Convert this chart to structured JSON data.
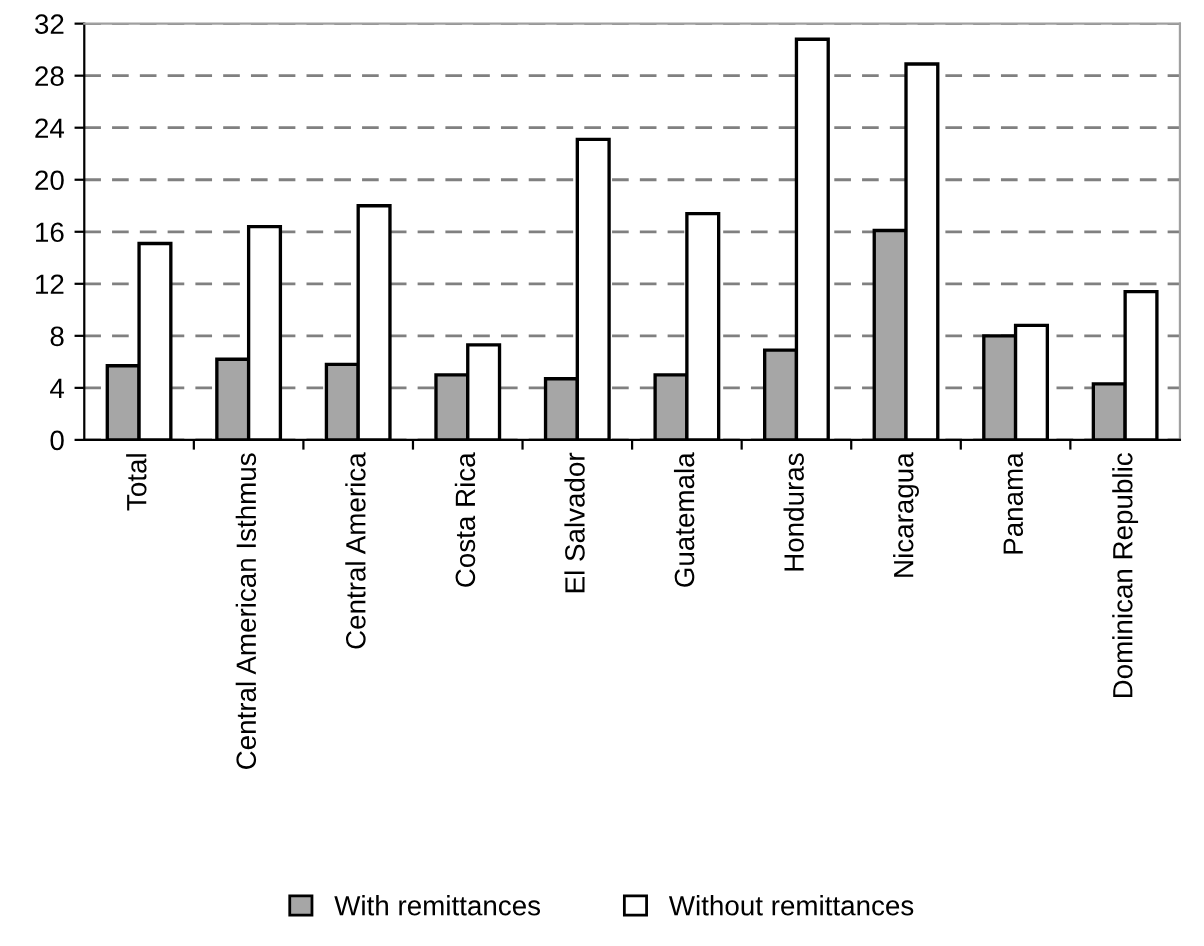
{
  "chart_data": {
    "type": "bar",
    "categories": [
      "Total",
      "Central American Isthmus",
      "Central America",
      "Costa Rica",
      "El Salvador",
      "Guatemala",
      "Honduras",
      "Nicaragua",
      "Panama",
      "Dominican Republic"
    ],
    "series": [
      {
        "name": "With remittances",
        "color": "#a6a6a6",
        "values": [
          5.7,
          6.2,
          5.8,
          5.0,
          4.7,
          5.0,
          6.9,
          16.1,
          8.0,
          4.3
        ]
      },
      {
        "name": "Without remittances",
        "color": "#ffffff",
        "values": [
          15.1,
          16.4,
          18.0,
          7.3,
          23.1,
          17.4,
          30.8,
          28.9,
          8.8,
          11.4
        ]
      }
    ],
    "ylim": [
      0,
      32
    ],
    "yticks": [
      0,
      4,
      8,
      12,
      16,
      20,
      24,
      28,
      32
    ],
    "grid": "y",
    "legend": "bottom"
  }
}
